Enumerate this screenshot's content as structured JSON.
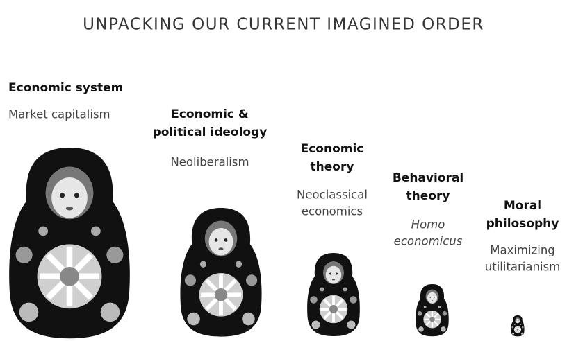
{
  "title": "UNPACKING OUR CURRENT IMAGINED ORDER",
  "items": [
    {
      "heading": [
        "Economic system"
      ],
      "detail": [
        "Market capitalism"
      ]
    },
    {
      "heading": [
        "Economic &",
        "political ideology"
      ],
      "detail": [
        "Neoliberalism"
      ]
    },
    {
      "heading": [
        "Economic",
        "theory"
      ],
      "detail": [
        "Neoclassical",
        "economics"
      ]
    },
    {
      "heading": [
        "Behavioral",
        "theory"
      ],
      "detail": [
        "Homo",
        "economicus"
      ]
    },
    {
      "heading": [
        "Moral",
        "philosophy"
      ],
      "detail": [
        "Maximizing",
        "utilitarianism"
      ]
    }
  ]
}
